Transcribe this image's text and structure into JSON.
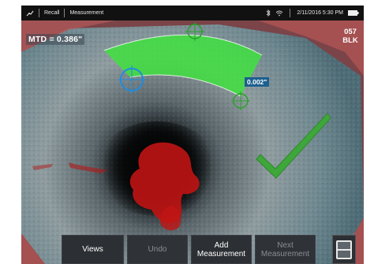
{
  "statusbar": {
    "recall": "Recall",
    "screen": "Measurement",
    "datetime": "2/11/2016 5:30 PM",
    "icons": [
      "probe-icon",
      "bluetooth-icon",
      "wifi-icon",
      "battery-icon"
    ]
  },
  "overlay": {
    "mtd": "MTD = 0.386\"",
    "probe_code_line1": "057",
    "probe_code_line2": "BLK",
    "measurement_value": "0.002\"",
    "result": "check-mark"
  },
  "toolbar": {
    "views": "Views",
    "undo": "Undo",
    "add_measurement": "Add Measurement",
    "next_measurement": "Next Measurement",
    "menu_icon": "layout-menu-icon"
  },
  "colors": {
    "status_bg": "#111111",
    "measure_fill": "#3fe03f",
    "crosshair_blue": "#1e8ce0",
    "crosshair_green": "#2aa02a",
    "check_green": "#3ea63a",
    "defect_red": "#d01818",
    "label_blue": "#1d5f8e"
  }
}
